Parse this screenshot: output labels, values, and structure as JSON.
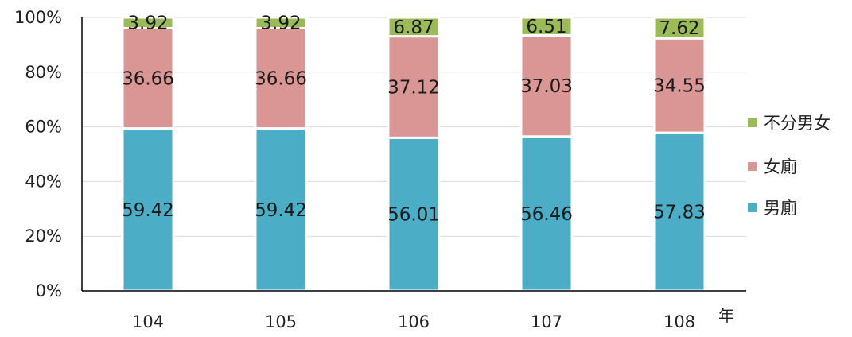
{
  "chart_data": {
    "type": "bar",
    "stacked": true,
    "percent_stacked": true,
    "categories": [
      "104",
      "105",
      "106",
      "107",
      "108"
    ],
    "x_unit_label": "年",
    "y_ticks": [
      "0%",
      "20%",
      "40%",
      "60%",
      "80%",
      "100%"
    ],
    "ylim": [
      0,
      100
    ],
    "grid": true,
    "legend_position": "right",
    "series": [
      {
        "name": "男廁",
        "color": "#4badc6",
        "values": [
          59.42,
          59.42,
          56.01,
          56.46,
          57.83
        ],
        "labels": [
          "59.42",
          "59.42",
          "56.01",
          "56.46",
          "57.83"
        ]
      },
      {
        "name": "女廁",
        "color": "#d99694",
        "values": [
          36.66,
          36.66,
          37.12,
          37.03,
          34.55
        ],
        "labels": [
          "36.66",
          "36.66",
          "37.12",
          "37.03",
          "34.55"
        ]
      },
      {
        "name": "不分男女",
        "color": "#9bbb59",
        "values": [
          3.92,
          3.92,
          6.87,
          6.51,
          7.62
        ],
        "labels": [
          "3.92",
          "3.92",
          "6.87",
          "6.51",
          "7.62"
        ]
      }
    ]
  }
}
